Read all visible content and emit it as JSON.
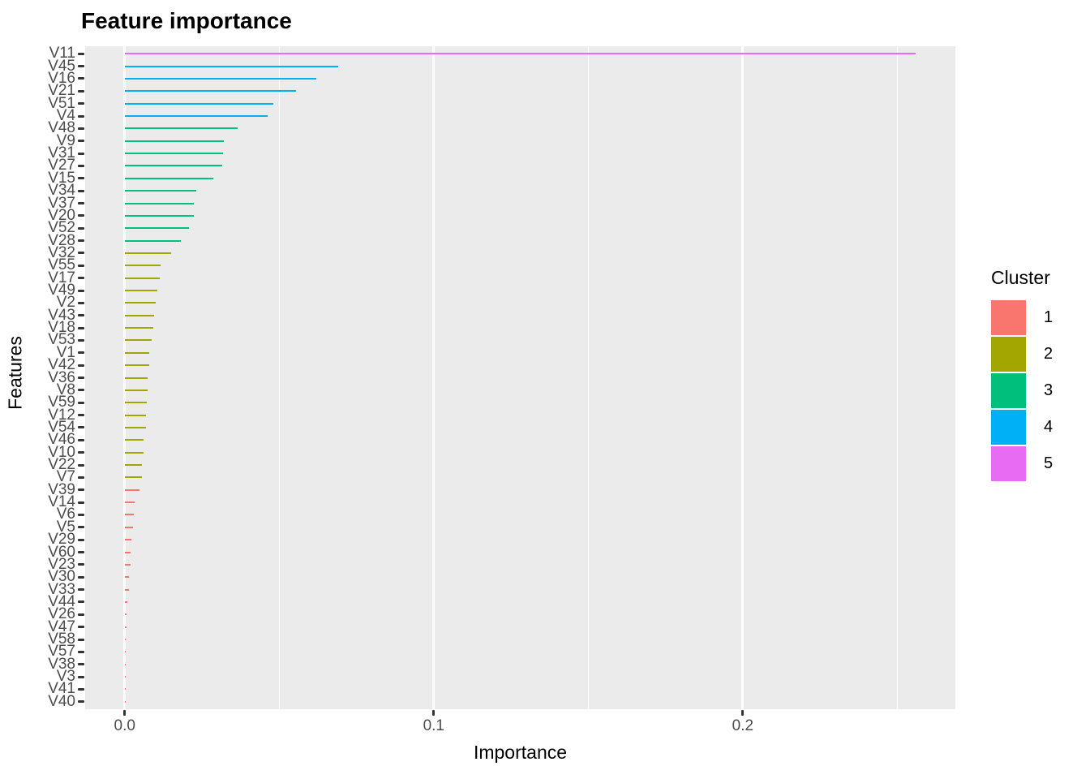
{
  "title": "Feature importance",
  "x_axis": {
    "label": "Importance",
    "ticks": [
      {
        "label": "0.0",
        "value": 0.0
      },
      {
        "label": "0.1",
        "value": 0.1
      },
      {
        "label": "0.2",
        "value": 0.2
      }
    ],
    "minor_gridlines": [
      0.05,
      0.15,
      0.25
    ],
    "range": [
      -0.0128,
      0.2688
    ]
  },
  "y_axis": {
    "label": "Features"
  },
  "legend": {
    "title": "Cluster",
    "entries": [
      {
        "label": "1",
        "color": "#F8766D"
      },
      {
        "label": "2",
        "color": "#A3A500"
      },
      {
        "label": "3",
        "color": "#00BF7D"
      },
      {
        "label": "4",
        "color": "#00B0F6"
      },
      {
        "label": "5",
        "color": "#E76BF3"
      }
    ]
  },
  "colors": {
    "panel_background": "#EBEBEB",
    "gridline": "#FFFFFF",
    "tick_label": "#4D4D4D",
    "tick_mark": "#333333"
  },
  "chart_data": {
    "type": "bar",
    "orientation": "horizontal",
    "title": "Feature importance",
    "xlabel": "Importance",
    "ylabel": "Features",
    "xlim": [
      -0.0128,
      0.2688
    ],
    "grid": true,
    "legend_position": "right",
    "legend_title": "Cluster",
    "cluster_colors": {
      "1": "#F8766D",
      "2": "#A3A500",
      "3": "#00BF7D",
      "4": "#00B0F6",
      "5": "#E76BF3"
    },
    "series": [
      {
        "feature": "V11",
        "importance": 0.256,
        "cluster": 5
      },
      {
        "feature": "V45",
        "importance": 0.069,
        "cluster": 4
      },
      {
        "feature": "V16",
        "importance": 0.062,
        "cluster": 4
      },
      {
        "feature": "V21",
        "importance": 0.0554,
        "cluster": 4
      },
      {
        "feature": "V51",
        "importance": 0.0481,
        "cluster": 4
      },
      {
        "feature": "V4",
        "importance": 0.0463,
        "cluster": 4
      },
      {
        "feature": "V48",
        "importance": 0.0366,
        "cluster": 3
      },
      {
        "feature": "V9",
        "importance": 0.0321,
        "cluster": 3
      },
      {
        "feature": "V31",
        "importance": 0.0318,
        "cluster": 3
      },
      {
        "feature": "V27",
        "importance": 0.0316,
        "cluster": 3
      },
      {
        "feature": "V15",
        "importance": 0.0287,
        "cluster": 3
      },
      {
        "feature": "V34",
        "importance": 0.0232,
        "cluster": 3
      },
      {
        "feature": "V37",
        "importance": 0.0225,
        "cluster": 3
      },
      {
        "feature": "V20",
        "importance": 0.0224,
        "cluster": 3
      },
      {
        "feature": "V52",
        "importance": 0.0208,
        "cluster": 3
      },
      {
        "feature": "V28",
        "importance": 0.0182,
        "cluster": 3
      },
      {
        "feature": "V32",
        "importance": 0.015,
        "cluster": 2
      },
      {
        "feature": "V55",
        "importance": 0.0116,
        "cluster": 2
      },
      {
        "feature": "V17",
        "importance": 0.0114,
        "cluster": 2
      },
      {
        "feature": "V49",
        "importance": 0.0106,
        "cluster": 2
      },
      {
        "feature": "V2",
        "importance": 0.0101,
        "cluster": 2
      },
      {
        "feature": "V43",
        "importance": 0.0095,
        "cluster": 2
      },
      {
        "feature": "V18",
        "importance": 0.0092,
        "cluster": 2
      },
      {
        "feature": "V53",
        "importance": 0.0087,
        "cluster": 2
      },
      {
        "feature": "V1",
        "importance": 0.008,
        "cluster": 2
      },
      {
        "feature": "V42",
        "importance": 0.0079,
        "cluster": 2
      },
      {
        "feature": "V36",
        "importance": 0.0074,
        "cluster": 2
      },
      {
        "feature": "V8",
        "importance": 0.0073,
        "cluster": 2
      },
      {
        "feature": "V59",
        "importance": 0.0072,
        "cluster": 2
      },
      {
        "feature": "V12",
        "importance": 0.007,
        "cluster": 2
      },
      {
        "feature": "V54",
        "importance": 0.0069,
        "cluster": 2
      },
      {
        "feature": "V46",
        "importance": 0.0062,
        "cluster": 2
      },
      {
        "feature": "V10",
        "importance": 0.0061,
        "cluster": 2
      },
      {
        "feature": "V22",
        "importance": 0.0056,
        "cluster": 2
      },
      {
        "feature": "V7",
        "importance": 0.0055,
        "cluster": 2
      },
      {
        "feature": "V39",
        "importance": 0.0047,
        "cluster": 1
      },
      {
        "feature": "V14",
        "importance": 0.0032,
        "cluster": 1
      },
      {
        "feature": "V6",
        "importance": 0.0029,
        "cluster": 1
      },
      {
        "feature": "V5",
        "importance": 0.0026,
        "cluster": 1
      },
      {
        "feature": "V29",
        "importance": 0.0022,
        "cluster": 1
      },
      {
        "feature": "V60",
        "importance": 0.002,
        "cluster": 1
      },
      {
        "feature": "V23",
        "importance": 0.0019,
        "cluster": 1
      },
      {
        "feature": "V30",
        "importance": 0.0014,
        "cluster": 1
      },
      {
        "feature": "V33",
        "importance": 0.0013,
        "cluster": 1
      },
      {
        "feature": "V44",
        "importance": 0.0008,
        "cluster": 1
      },
      {
        "feature": "V26",
        "importance": 0.0007,
        "cluster": 1
      },
      {
        "feature": "V47",
        "importance": 0.0006,
        "cluster": 1
      },
      {
        "feature": "V58",
        "importance": 0.00045,
        "cluster": 1
      },
      {
        "feature": "V57",
        "importance": 0.0004,
        "cluster": 1
      },
      {
        "feature": "V38",
        "importance": 0.00035,
        "cluster": 1
      },
      {
        "feature": "V3",
        "importance": 0.0003,
        "cluster": 1
      },
      {
        "feature": "V41",
        "importance": 0.0002,
        "cluster": 1
      },
      {
        "feature": "V40",
        "importance": 0.0001,
        "cluster": 1
      }
    ]
  }
}
